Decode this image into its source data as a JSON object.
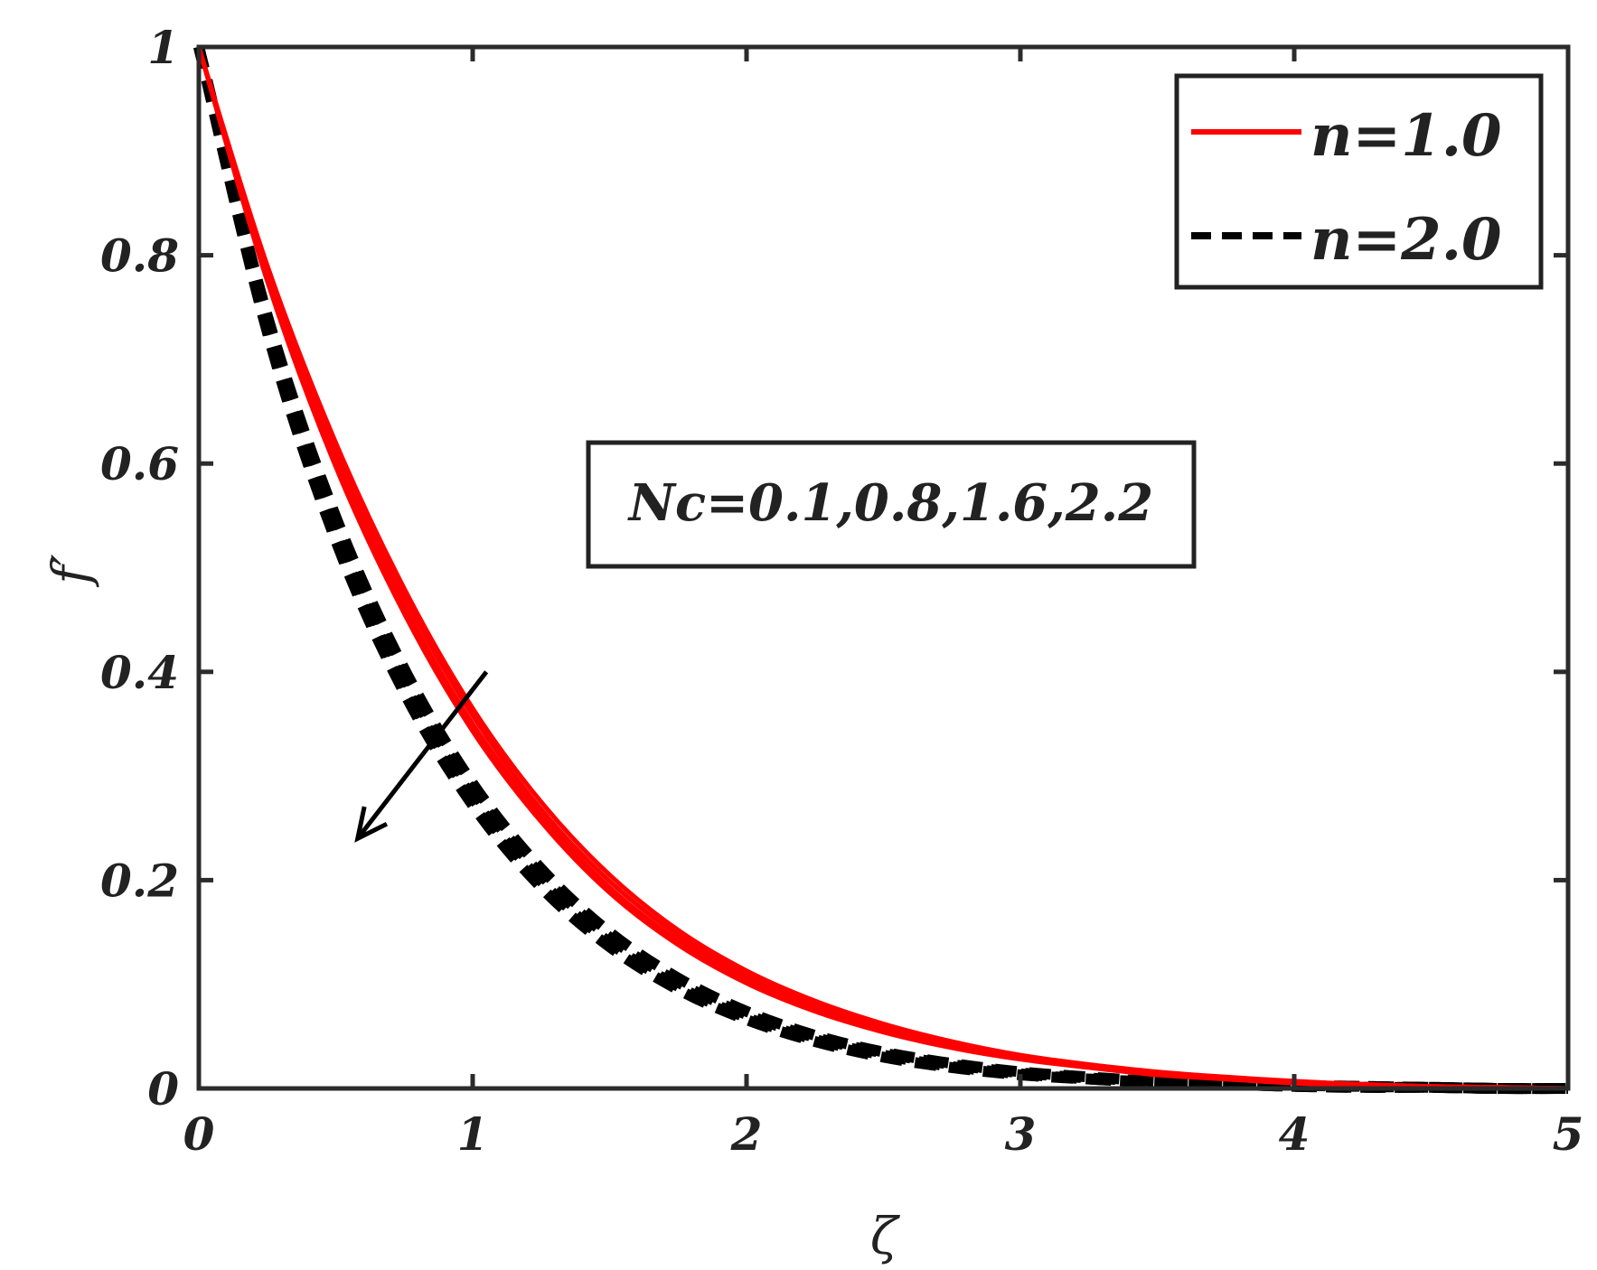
{
  "chart_data": {
    "type": "line",
    "xlabel": "ζ",
    "ylabel": "f′",
    "xlim": [
      0,
      5
    ],
    "ylim": [
      0,
      1
    ],
    "xticks": [
      "0",
      "1",
      "2",
      "3",
      "4",
      "5"
    ],
    "yticks": [
      "0",
      "0.2",
      "0.4",
      "0.6",
      "0.8",
      "1"
    ],
    "grid": false,
    "legend_position": "top-right",
    "legend": [
      {
        "label": "n=1.0",
        "color": "#ff0000",
        "style": "solid"
      },
      {
        "label": "n=2.0",
        "color": "#000000",
        "style": "dashed"
      }
    ],
    "annotation": "Nc=0.1,0.8,1.6,2.2",
    "arrow": {
      "from": [
        1.05,
        0.4
      ],
      "to": [
        0.58,
        0.24
      ]
    },
    "x": [
      0,
      0.25,
      0.5,
      0.75,
      1.0,
      1.25,
      1.5,
      1.75,
      2.0,
      2.25,
      2.5,
      2.75,
      3.0,
      3.25,
      3.5,
      3.75,
      4.0,
      4.25,
      4.5,
      4.75,
      5.0
    ],
    "series": [
      {
        "group": "n=1.0",
        "Nc": 0.1,
        "values": [
          1.0,
          0.79,
          0.62,
          0.48,
          0.365,
          0.275,
          0.205,
          0.152,
          0.113,
          0.084,
          0.062,
          0.045,
          0.032,
          0.023,
          0.016,
          0.011,
          0.007,
          0.004,
          0.002,
          0.001,
          0.0
        ]
      },
      {
        "group": "n=1.0",
        "Nc": 0.8,
        "values": [
          1.0,
          0.785,
          0.612,
          0.472,
          0.358,
          0.268,
          0.199,
          0.147,
          0.109,
          0.081,
          0.059,
          0.043,
          0.031,
          0.022,
          0.015,
          0.01,
          0.006,
          0.004,
          0.002,
          0.001,
          0.0
        ]
      },
      {
        "group": "n=1.0",
        "Nc": 1.6,
        "values": [
          1.0,
          0.78,
          0.604,
          0.463,
          0.35,
          0.262,
          0.193,
          0.142,
          0.105,
          0.077,
          0.056,
          0.041,
          0.029,
          0.021,
          0.014,
          0.009,
          0.006,
          0.003,
          0.002,
          0.001,
          0.0
        ]
      },
      {
        "group": "n=1.0",
        "Nc": 2.2,
        "values": [
          1.0,
          0.775,
          0.597,
          0.456,
          0.343,
          0.256,
          0.188,
          0.138,
          0.101,
          0.074,
          0.054,
          0.039,
          0.028,
          0.02,
          0.013,
          0.009,
          0.005,
          0.003,
          0.002,
          0.001,
          0.0
        ]
      },
      {
        "group": "n=2.0",
        "Nc": 0.1,
        "values": [
          1.0,
          0.742,
          0.549,
          0.403,
          0.293,
          0.211,
          0.15,
          0.106,
          0.074,
          0.051,
          0.035,
          0.024,
          0.016,
          0.011,
          0.007,
          0.005,
          0.003,
          0.002,
          0.001,
          0.0,
          0.0
        ]
      },
      {
        "group": "n=2.0",
        "Nc": 0.8,
        "values": [
          1.0,
          0.737,
          0.541,
          0.395,
          0.286,
          0.205,
          0.145,
          0.102,
          0.071,
          0.049,
          0.034,
          0.023,
          0.015,
          0.01,
          0.007,
          0.004,
          0.003,
          0.002,
          0.001,
          0.0,
          0.0
        ]
      },
      {
        "group": "n=2.0",
        "Nc": 1.6,
        "values": [
          1.0,
          0.731,
          0.533,
          0.387,
          0.279,
          0.199,
          0.14,
          0.098,
          0.068,
          0.047,
          0.032,
          0.021,
          0.014,
          0.009,
          0.006,
          0.004,
          0.002,
          0.001,
          0.001,
          0.0,
          0.0
        ]
      },
      {
        "group": "n=2.0",
        "Nc": 2.2,
        "values": [
          1.0,
          0.726,
          0.526,
          0.38,
          0.272,
          0.193,
          0.136,
          0.095,
          0.066,
          0.045,
          0.03,
          0.02,
          0.013,
          0.009,
          0.006,
          0.004,
          0.002,
          0.001,
          0.001,
          0.0,
          0.0
        ]
      }
    ]
  }
}
